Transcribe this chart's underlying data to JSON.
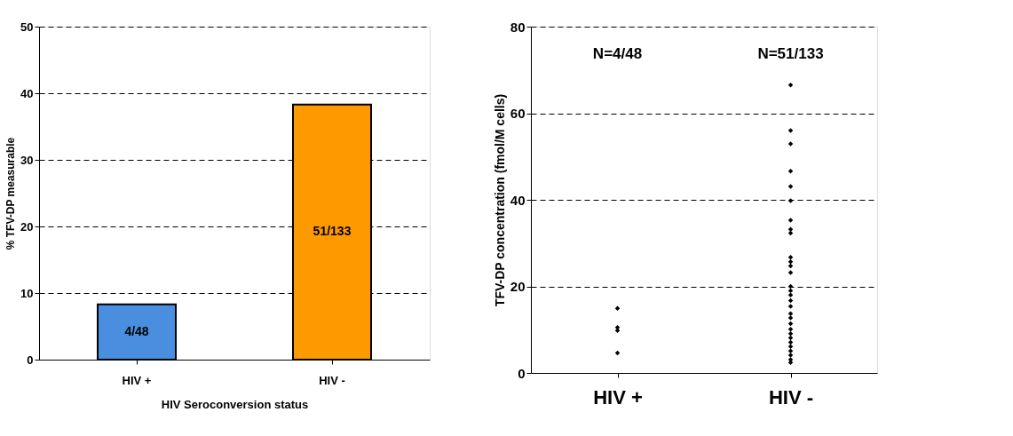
{
  "chart_data": [
    {
      "type": "bar",
      "categories": [
        "HIV +",
        "HIV -"
      ],
      "values": [
        8.3,
        38.3
      ],
      "colors": [
        "#4a8ee0",
        "#ff9900"
      ],
      "value_labels": [
        "4/48",
        "51/133"
      ],
      "xlabel": "HIV Seroconversion status",
      "ylabel": "% TFV-DP measurable",
      "ylim": [
        0,
        50
      ],
      "yticks": [
        0,
        10,
        20,
        30,
        40,
        50
      ],
      "grid": "y",
      "legend": false
    },
    {
      "type": "scatter",
      "categories": [
        "HIV +",
        "HIV -"
      ],
      "ylabel": "TFV-DP concentration (fmol/M cells)",
      "ylim": [
        0,
        80
      ],
      "yticks": [
        0,
        20,
        40,
        60,
        80
      ],
      "grid": "y",
      "marker": "diamond",
      "legend": false,
      "series": [
        {
          "color": "#000000",
          "x": [
            "HIV +",
            "HIV +",
            "HIV +",
            "HIV +",
            "HIV -",
            "HIV -",
            "HIV -",
            "HIV -",
            "HIV -",
            "HIV -",
            "HIV -",
            "HIV -",
            "HIV -",
            "HIV -",
            "HIV -",
            "HIV -",
            "HIV -",
            "HIV -",
            "HIV -",
            "HIV -",
            "HIV -",
            "HIV -",
            "HIV -",
            "HIV -",
            "HIV -",
            "HIV -",
            "HIV -",
            "HIV -",
            "HIV -",
            "HIV -",
            "HIV -",
            "HIV -",
            "HIV -",
            "HIV -"
          ],
          "values": [
            14.9,
            10.5,
            9.8,
            4.6,
            66.5,
            56,
            52.9,
            46.6,
            43.1,
            35.3,
            33.2,
            32.3,
            26.7,
            25.7,
            24.7,
            23.2,
            20.0,
            19.0,
            18.0,
            16.7,
            15.4,
            13.7,
            12.7,
            11.4,
            10.1,
            9.1,
            8.1,
            7.1,
            6.1,
            5.1,
            4.1,
            3.1,
            2.4,
            39.8
          ]
        }
      ],
      "annotations": [
        "N=4/48",
        "N=51/133"
      ]
    }
  ]
}
